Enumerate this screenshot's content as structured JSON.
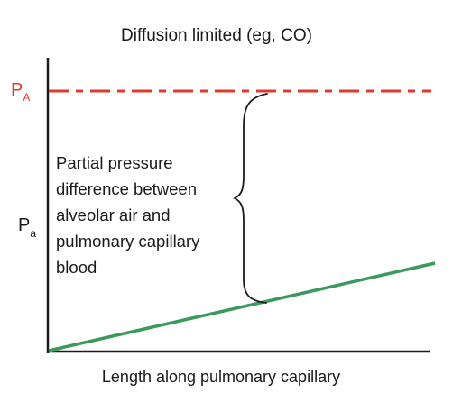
{
  "title": "Diffusion limited (eg, CO)",
  "x_axis_label": "Length along pulmonary capillary",
  "alveolar_label": {
    "main": "P",
    "sub": "A"
  },
  "capillary_label": {
    "main": "P",
    "sub": "a"
  },
  "annotation_lines": [
    "Partial pressure",
    "difference between",
    "alveolar air and",
    "pulmonary capillary",
    "blood"
  ],
  "colors": {
    "alveolar_line": "#e03a2f",
    "capillary_line": "#3a9a5c",
    "axes": "#1a1a1a",
    "brace": "#1a1a1a",
    "text": "#1a1a1a"
  }
}
